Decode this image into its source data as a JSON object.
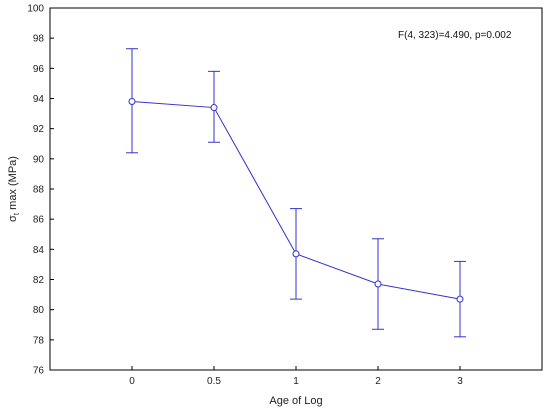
{
  "chart_data": {
    "type": "line",
    "categories": [
      "0",
      "0.5",
      "1",
      "2",
      "3"
    ],
    "values": [
      93.8,
      93.4,
      83.7,
      81.7,
      80.7
    ],
    "error_bars": {
      "lower": [
        90.4,
        91.1,
        80.7,
        78.7,
        78.2
      ],
      "upper": [
        97.3,
        95.8,
        86.7,
        84.7,
        83.2
      ]
    },
    "xlabel": "Age of Log",
    "ylabel": "σt max (MPa)",
    "ylabel_main": "σ",
    "ylabel_sub": "t",
    "ylabel_rest": " max (MPa)",
    "ylim": [
      76,
      100
    ],
    "yticks": [
      76,
      78,
      80,
      82,
      84,
      86,
      88,
      90,
      92,
      94,
      96,
      98,
      100
    ],
    "annotation": "F(4, 323)=4.490, p=0.002",
    "series_color": "#3333cc",
    "grid": false,
    "legend": "none"
  }
}
